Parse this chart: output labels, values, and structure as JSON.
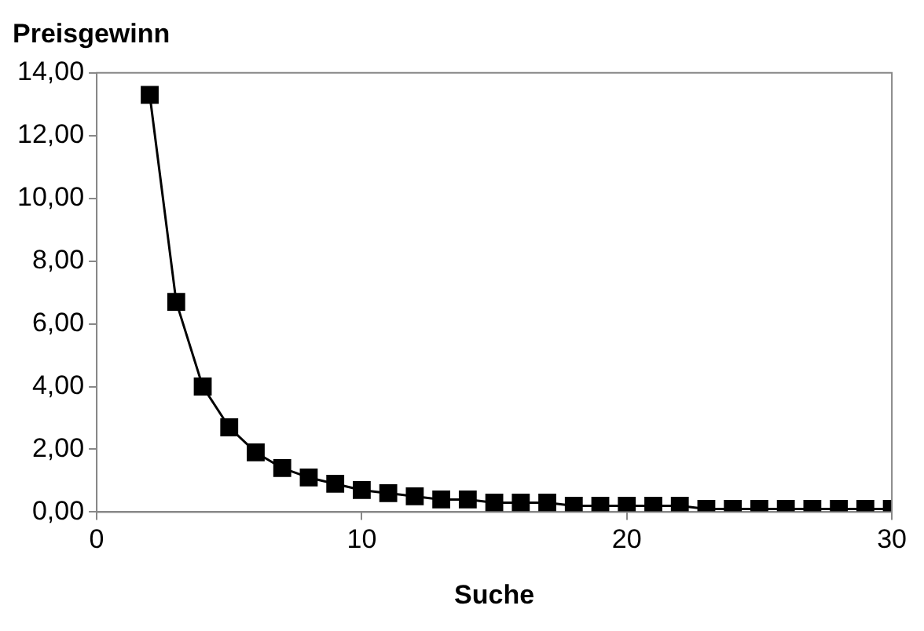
{
  "chart_data": {
    "type": "line",
    "title": "Preisgewinn",
    "xlabel": "Suche",
    "x": [
      2,
      3,
      4,
      5,
      6,
      7,
      8,
      9,
      10,
      11,
      12,
      13,
      14,
      15,
      16,
      17,
      18,
      19,
      20,
      21,
      22,
      23,
      24,
      25,
      26,
      27,
      28,
      29,
      30
    ],
    "series": [
      {
        "color": "#000000",
        "values": [
          13.3,
          6.7,
          4.0,
          2.7,
          1.9,
          1.4,
          1.1,
          0.9,
          0.7,
          0.6,
          0.5,
          0.4,
          0.4,
          0.3,
          0.3,
          0.3,
          0.2,
          0.2,
          0.2,
          0.2,
          0.2,
          0.1,
          0.1,
          0.1,
          0.1,
          0.1,
          0.1,
          0.1,
          0.1
        ]
      }
    ],
    "xlim": [
      0,
      30
    ],
    "xticks": [
      0,
      10,
      20,
      30
    ],
    "ylim": [
      0,
      14
    ],
    "yticks": [
      {
        "value": 0,
        "label": "0,00"
      },
      {
        "value": 2,
        "label": "2,00"
      },
      {
        "value": 4,
        "label": "4,00"
      },
      {
        "value": 6,
        "label": "6,00"
      },
      {
        "value": 8,
        "label": "8,00"
      },
      {
        "value": 10,
        "label": "10,00"
      },
      {
        "value": 12,
        "label": "12,00"
      },
      {
        "value": 14,
        "label": "14,00"
      }
    ],
    "grid": false,
    "legend": false,
    "marker": "square",
    "line_style": "solid"
  }
}
